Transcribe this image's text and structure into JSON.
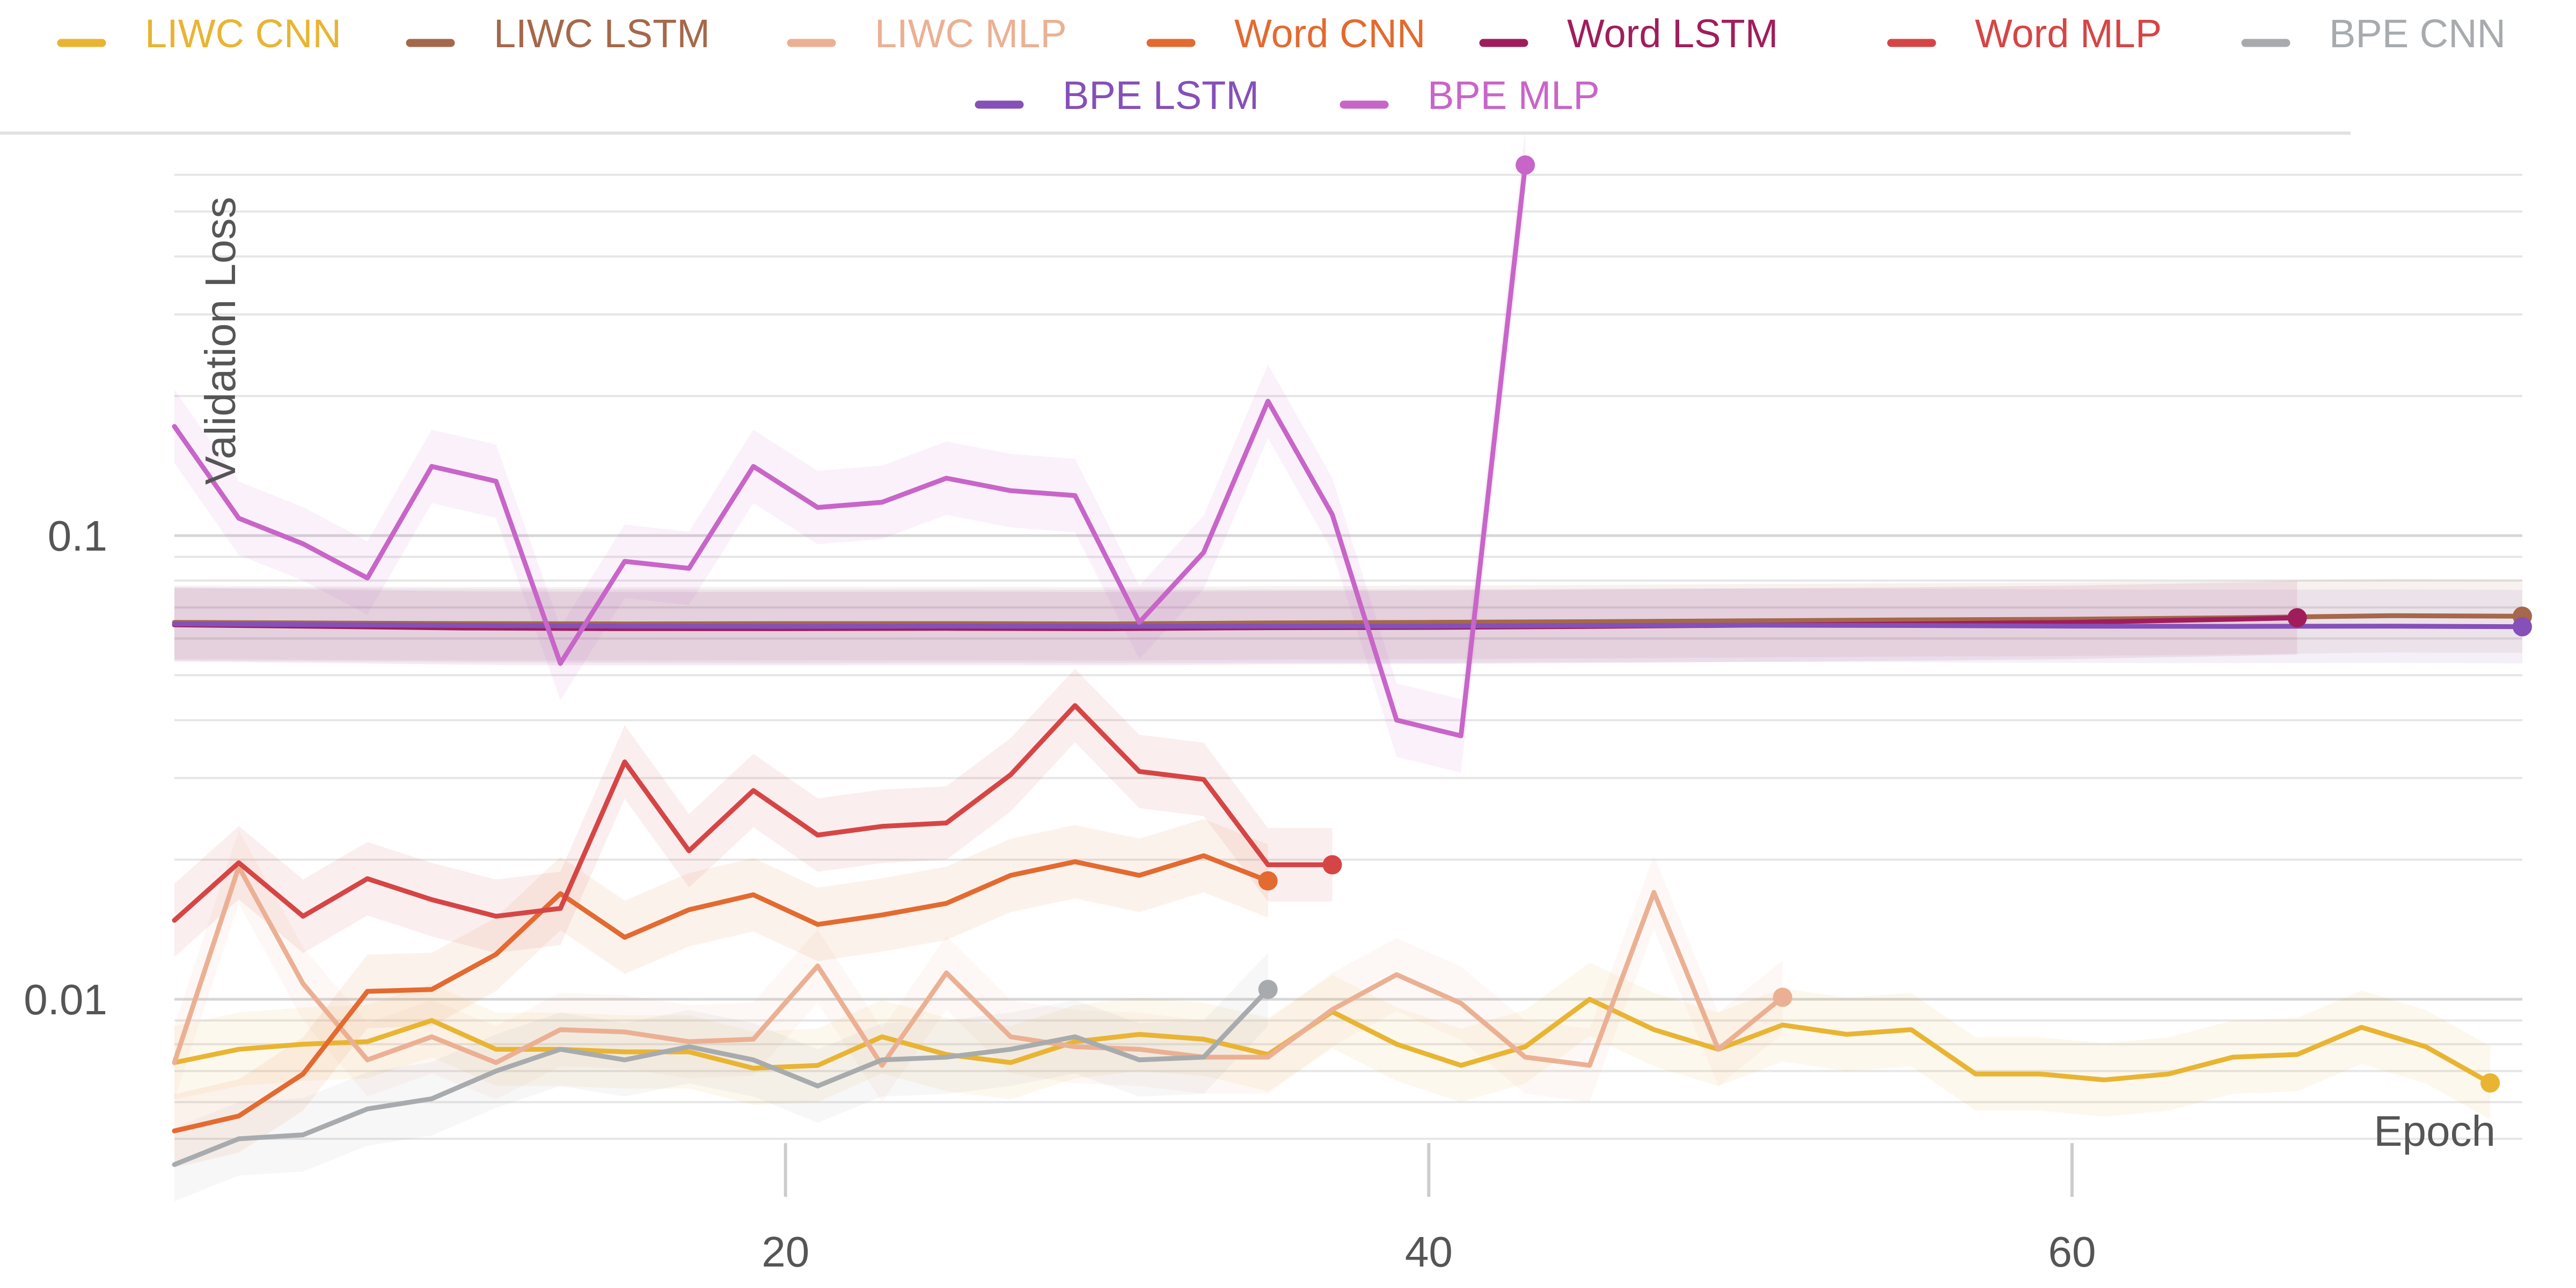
{
  "chart_data": {
    "type": "line",
    "title": "",
    "xlabel": "Epoch",
    "ylabel": "Validation Loss",
    "y_scale": "log",
    "xlim": [
      1,
      74
    ],
    "ylim": [
      0.0044,
      0.66
    ],
    "x_ticks": [
      20,
      40,
      60
    ],
    "x_tick_labels": [
      "20",
      "40",
      "60"
    ],
    "y_ticks": [
      0.01,
      0.1
    ],
    "y_tick_labels": [
      "0.01",
      "0.1"
    ],
    "grid": "horizontal",
    "legend_position": "top",
    "series": [
      {
        "name": "LIWC CNN",
        "color": "#E8B432",
        "x": [
          1,
          3,
          5,
          7,
          9,
          11,
          13,
          15,
          17,
          19,
          21,
          23,
          25,
          27,
          29,
          31,
          33,
          35,
          37,
          39,
          41,
          43,
          45,
          47,
          49,
          51,
          53,
          55,
          57,
          59,
          61,
          63,
          65,
          67,
          69,
          71,
          73
        ],
        "y": [
          0.0073,
          0.0078,
          0.008,
          0.0081,
          0.009,
          0.0078,
          0.0078,
          0.0077,
          0.0077,
          0.0071,
          0.0072,
          0.0083,
          0.0076,
          0.0073,
          0.0081,
          0.0084,
          0.0082,
          0.0076,
          0.0094,
          0.008,
          0.0072,
          0.0079,
          0.01,
          0.0086,
          0.0078,
          0.0088,
          0.0084,
          0.0086,
          0.0069,
          0.0069,
          0.0067,
          0.0069,
          0.0075,
          0.0076,
          0.0087,
          0.0079,
          0.0066
        ]
      },
      {
        "name": "LIWC LSTM",
        "color": "#A5684A",
        "x": [
          1,
          5,
          10,
          15,
          20,
          25,
          30,
          35,
          40,
          45,
          50,
          55,
          60,
          65,
          70,
          74
        ],
        "y": [
          0.065,
          0.0648,
          0.0646,
          0.0645,
          0.0646,
          0.0646,
          0.0645,
          0.0648,
          0.065,
          0.0652,
          0.0655,
          0.0658,
          0.066,
          0.0665,
          0.0672,
          0.067
        ]
      },
      {
        "name": "LIWC MLP",
        "color": "#EBB093",
        "x": [
          1,
          3,
          5,
          7,
          9,
          11,
          13,
          15,
          17,
          19,
          21,
          23,
          25,
          27,
          29,
          31,
          33,
          35,
          37,
          39,
          41,
          43,
          45,
          47,
          49,
          51
        ],
        "y": [
          0.0073,
          0.0193,
          0.0108,
          0.0074,
          0.0083,
          0.0073,
          0.0086,
          0.0085,
          0.0081,
          0.0082,
          0.0118,
          0.0072,
          0.0114,
          0.0083,
          0.0079,
          0.0078,
          0.0075,
          0.0075,
          0.0095,
          0.0113,
          0.0098,
          0.0075,
          0.0072,
          0.017,
          0.0078,
          0.0101
        ]
      },
      {
        "name": "Word CNN",
        "color": "#E36A30",
        "x": [
          1,
          3,
          5,
          7,
          9,
          11,
          13,
          15,
          17,
          19,
          21,
          23,
          25,
          27,
          29,
          31,
          33,
          35
        ],
        "y": [
          0.0052,
          0.0056,
          0.0069,
          0.0104,
          0.0105,
          0.0125,
          0.0169,
          0.0136,
          0.0156,
          0.0168,
          0.0145,
          0.0152,
          0.0161,
          0.0185,
          0.0198,
          0.0185,
          0.0204,
          0.018
        ]
      },
      {
        "name": "Word LSTM",
        "color": "#A01D5B",
        "x": [
          1,
          5,
          10,
          15,
          20,
          25,
          30,
          35,
          40,
          45,
          50,
          55,
          60,
          65,
          67
        ],
        "y": [
          0.0642,
          0.0638,
          0.0632,
          0.063,
          0.063,
          0.0631,
          0.063,
          0.0633,
          0.0634,
          0.0637,
          0.0641,
          0.0645,
          0.065,
          0.066,
          0.0665
        ]
      },
      {
        "name": "Word MLP",
        "color": "#D64545",
        "x": [
          1,
          3,
          5,
          7,
          9,
          11,
          13,
          15,
          17,
          19,
          21,
          23,
          25,
          27,
          29,
          31,
          33,
          35,
          37
        ],
        "y": [
          0.0148,
          0.0197,
          0.0151,
          0.0182,
          0.0164,
          0.0151,
          0.0157,
          0.0325,
          0.0209,
          0.0282,
          0.0226,
          0.0236,
          0.024,
          0.0305,
          0.043,
          0.031,
          0.0298,
          0.0195,
          0.0195
        ]
      },
      {
        "name": "BPE CNN",
        "color": "#A8ABAE",
        "x": [
          1,
          3,
          5,
          7,
          9,
          11,
          13,
          15,
          17,
          19,
          21,
          23,
          25,
          27,
          29,
          31,
          33,
          35
        ],
        "y": [
          0.0044,
          0.005,
          0.0051,
          0.0058,
          0.0061,
          0.007,
          0.0078,
          0.0074,
          0.0079,
          0.0074,
          0.0065,
          0.0074,
          0.0075,
          0.0078,
          0.0083,
          0.0074,
          0.0075,
          0.0105
        ]
      },
      {
        "name": "BPE LSTM",
        "color": "#8550B8",
        "x": [
          1,
          5,
          10,
          15,
          20,
          25,
          30,
          35,
          40,
          45,
          50,
          55,
          60,
          65,
          70,
          74
        ],
        "y": [
          0.0645,
          0.0643,
          0.064,
          0.0638,
          0.0637,
          0.0638,
          0.0637,
          0.0638,
          0.0638,
          0.064,
          0.0641,
          0.064,
          0.0638,
          0.0637,
          0.0638,
          0.0636
        ]
      },
      {
        "name": "BPE MLP",
        "color": "#C865C8",
        "x": [
          1,
          3,
          5,
          7,
          9,
          11,
          13,
          15,
          17,
          19,
          21,
          23,
          25,
          27,
          29,
          31,
          33,
          35,
          37,
          39,
          41,
          43
        ],
        "y": [
          0.172,
          0.109,
          0.096,
          0.081,
          0.141,
          0.131,
          0.053,
          0.088,
          0.085,
          0.141,
          0.115,
          0.118,
          0.133,
          0.125,
          0.122,
          0.065,
          0.092,
          0.195,
          0.111,
          0.04,
          0.037,
          0.63
        ]
      }
    ]
  }
}
